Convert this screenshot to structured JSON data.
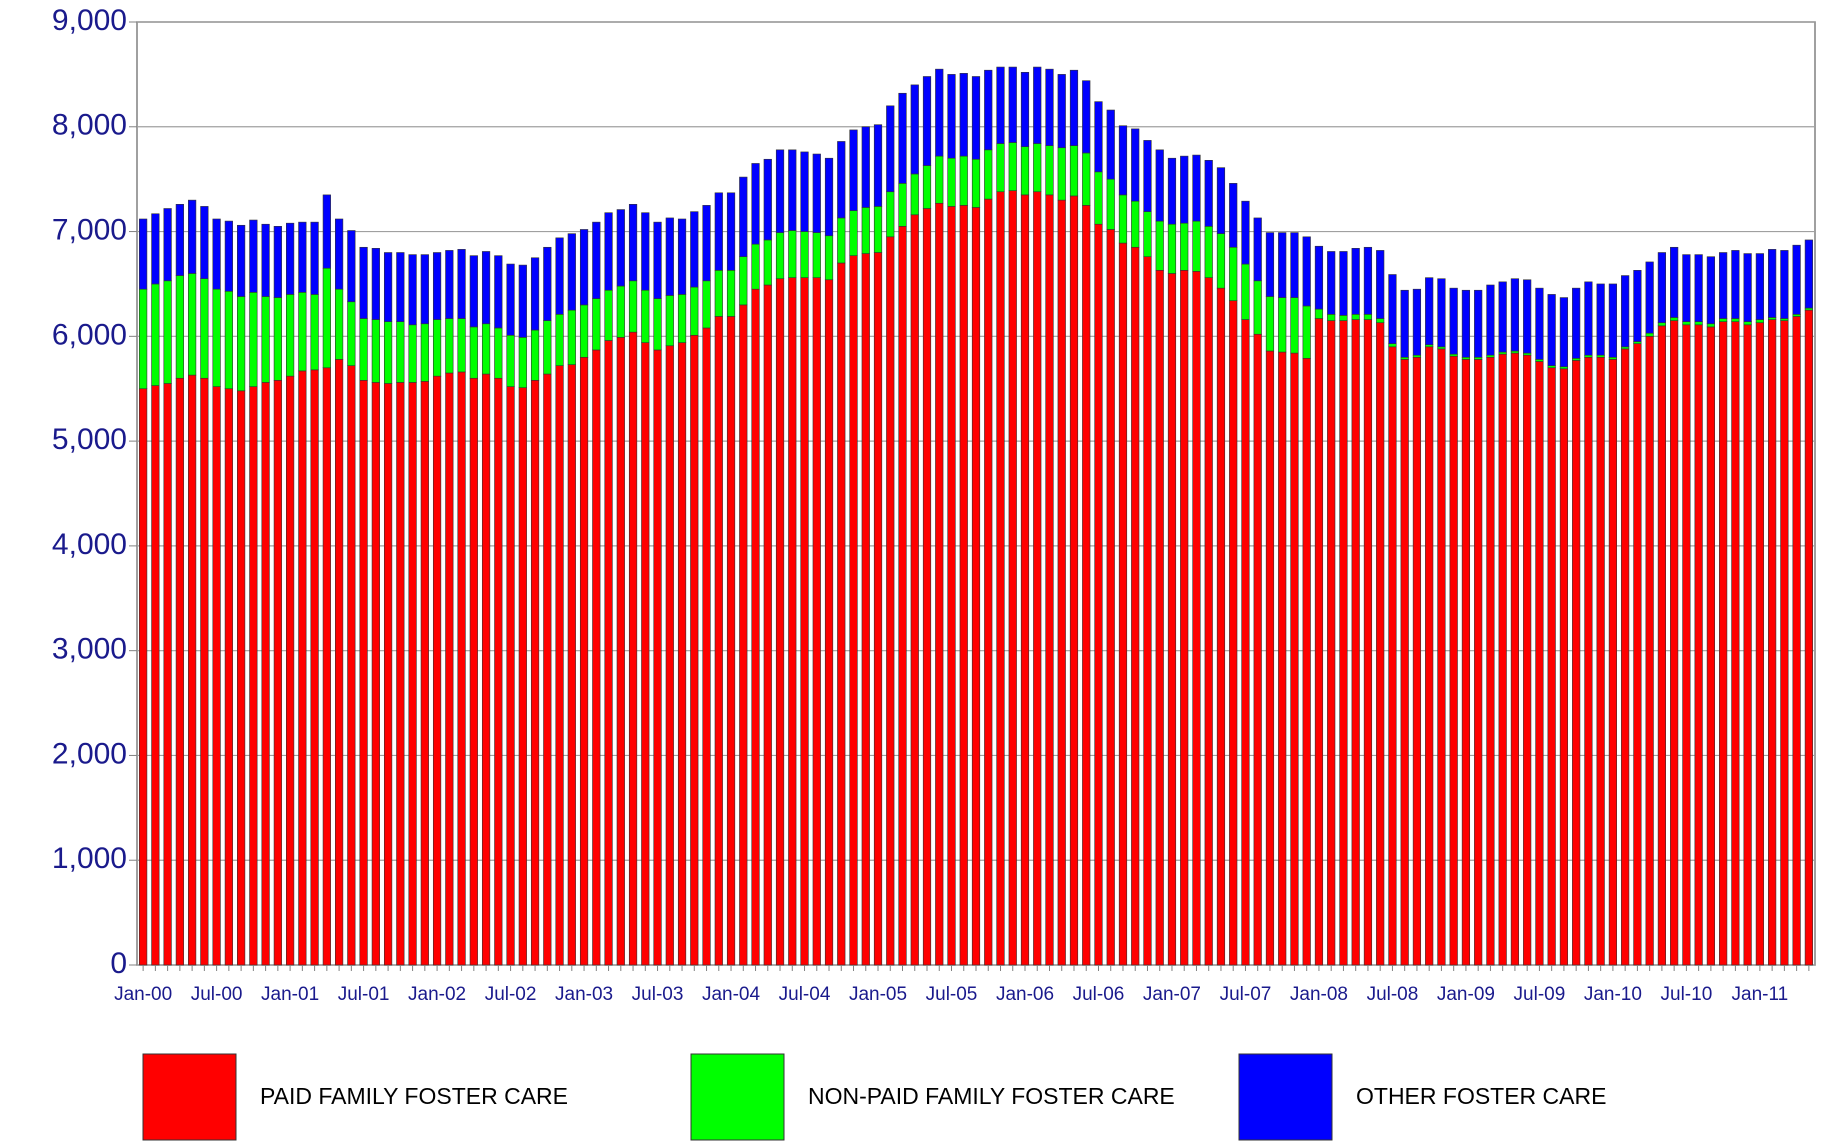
{
  "chart_data": {
    "type": "stacked_bar",
    "categories": [
      "Jan-00",
      null,
      null,
      null,
      null,
      null,
      "Jul-00",
      null,
      null,
      null,
      null,
      null,
      "Jan-01",
      null,
      null,
      null,
      null,
      null,
      "Jul-01",
      null,
      null,
      null,
      null,
      null,
      "Jan-02",
      null,
      null,
      null,
      null,
      null,
      "Jul-02",
      null,
      null,
      null,
      null,
      null,
      "Jan-03",
      null,
      null,
      null,
      null,
      null,
      "Jul-03",
      null,
      null,
      null,
      null,
      null,
      "Jan-04",
      null,
      null,
      null,
      null,
      null,
      "Jul-04",
      null,
      null,
      null,
      null,
      null,
      "Jan-05",
      null,
      null,
      null,
      null,
      null,
      "Jul-05",
      null,
      null,
      null,
      null,
      null,
      "Jan-06",
      null,
      null,
      null,
      null,
      null,
      "Jul-06",
      null,
      null,
      null,
      null,
      null,
      "Jan-07",
      null,
      null,
      null,
      null,
      null,
      "Jul-07",
      null,
      null,
      null,
      null,
      null,
      "Jan-08",
      null,
      null,
      null,
      null,
      null,
      "Jul-08",
      null,
      null,
      null,
      null,
      null,
      "Jan-09",
      null,
      null,
      null,
      null,
      null,
      "Jul-09",
      null,
      null,
      null,
      null,
      null,
      "Jan-10",
      null,
      null,
      null,
      null,
      null,
      "Jul-10",
      null,
      null,
      null,
      null,
      null,
      "Jan-11",
      null,
      null,
      null,
      null
    ],
    "series": [
      {
        "name": "PAID FAMILY FOSTER CARE",
        "color": "#ff0000",
        "values": [
          5500,
          5530,
          5550,
          5600,
          5630,
          5600,
          5520,
          5500,
          5480,
          5520,
          5560,
          5580,
          5620,
          5670,
          5680,
          5700,
          5780,
          5720,
          5580,
          5560,
          5550,
          5560,
          5560,
          5570,
          5620,
          5650,
          5660,
          5600,
          5640,
          5600,
          5520,
          5510,
          5580,
          5640,
          5720,
          5730,
          5800,
          5870,
          5960,
          5990,
          6040,
          5940,
          5870,
          5910,
          5940,
          6010,
          6080,
          6190,
          6190,
          6300,
          6450,
          6490,
          6550,
          6560,
          6560,
          6560,
          6540,
          6700,
          6770,
          6790,
          6800,
          6950,
          7050,
          7160,
          7220,
          7270,
          7240,
          7250,
          7230,
          7310,
          7380,
          7390,
          7350,
          7380,
          7350,
          7300,
          7340,
          7250,
          7070,
          7020,
          6890,
          6850,
          6760,
          6630,
          6600,
          6630,
          6620,
          6560,
          6460,
          6340,
          6160,
          6020,
          5860,
          5850,
          5840,
          5790,
          6170,
          6150,
          6150,
          6160,
          6160,
          6130,
          5900,
          5780,
          5800,
          5900,
          5880,
          5810,
          5780,
          5780,
          5800,
          5830,
          5840,
          5820,
          5760,
          5700,
          5690,
          5770,
          5800,
          5800,
          5780,
          5880,
          5930,
          6000,
          6100,
          6150,
          6110,
          6110,
          6090,
          6140,
          6140,
          6110,
          6130,
          6160,
          6150,
          6190,
          6250
        ]
      },
      {
        "name": "NON-PAID FAMILY FOSTER CARE",
        "color": "#00ff00",
        "values": [
          950,
          970,
          980,
          980,
          970,
          950,
          930,
          930,
          900,
          900,
          820,
          790,
          780,
          750,
          720,
          950,
          670,
          610,
          590,
          600,
          590,
          580,
          550,
          550,
          540,
          520,
          510,
          490,
          480,
          480,
          490,
          480,
          480,
          510,
          490,
          520,
          500,
          490,
          480,
          490,
          490,
          500,
          490,
          480,
          460,
          460,
          450,
          440,
          440,
          460,
          430,
          430,
          440,
          450,
          440,
          430,
          420,
          430,
          430,
          440,
          440,
          430,
          410,
          390,
          410,
          450,
          460,
          470,
          460,
          470,
          460,
          460,
          460,
          460,
          470,
          500,
          480,
          500,
          500,
          480,
          460,
          440,
          430,
          470,
          470,
          450,
          480,
          490,
          520,
          510,
          530,
          510,
          520,
          520,
          530,
          500,
          90,
          60,
          50,
          50,
          50,
          40,
          30,
          20,
          20,
          20,
          20,
          20,
          20,
          20,
          20,
          20,
          20,
          20,
          20,
          20,
          20,
          20,
          20,
          20,
          20,
          20,
          20,
          30,
          30,
          30,
          30,
          30,
          30,
          30,
          30,
          30,
          30,
          20,
          20,
          20,
          20
        ]
      },
      {
        "name": "OTHER FOSTER CARE",
        "color": "#0000ff",
        "values": [
          670,
          670,
          690,
          680,
          700,
          690,
          670,
          670,
          680,
          690,
          690,
          680,
          680,
          670,
          690,
          700,
          670,
          680,
          680,
          680,
          660,
          660,
          670,
          660,
          640,
          650,
          660,
          680,
          690,
          690,
          680,
          690,
          690,
          700,
          730,
          730,
          720,
          730,
          740,
          730,
          730,
          740,
          730,
          740,
          720,
          720,
          720,
          740,
          740,
          760,
          770,
          770,
          790,
          770,
          760,
          750,
          740,
          730,
          770,
          770,
          780,
          820,
          860,
          850,
          850,
          830,
          800,
          790,
          790,
          760,
          730,
          720,
          710,
          730,
          730,
          700,
          720,
          690,
          670,
          660,
          660,
          690,
          680,
          680,
          630,
          640,
          630,
          630,
          630,
          610,
          600,
          600,
          610,
          620,
          620,
          660,
          600,
          600,
          610,
          630,
          640,
          650,
          660,
          640,
          630,
          640,
          650,
          630,
          640,
          640,
          670,
          670,
          690,
          700,
          680,
          680,
          660,
          670,
          700,
          680,
          700,
          680,
          680,
          680,
          670,
          670,
          640,
          640,
          640,
          630,
          650,
          650,
          630,
          650,
          650,
          660,
          650
        ]
      }
    ],
    "ylim": [
      0,
      9000
    ],
    "yticks": [
      0,
      {
        "value": 1000,
        "label": "1,000"
      },
      {
        "value": 2000,
        "label": "2,000"
      },
      {
        "value": 3000,
        "label": "3,000"
      },
      {
        "value": 4000,
        "label": "4,000"
      },
      {
        "value": 5000,
        "label": "5,000"
      },
      {
        "value": 6000,
        "label": "6,000"
      },
      {
        "value": 7000,
        "label": "7,000"
      },
      {
        "value": 8000,
        "label": "8,000"
      },
      {
        "value": 9000,
        "label": "9,000"
      }
    ],
    "grid": true,
    "legend": "bottom"
  }
}
